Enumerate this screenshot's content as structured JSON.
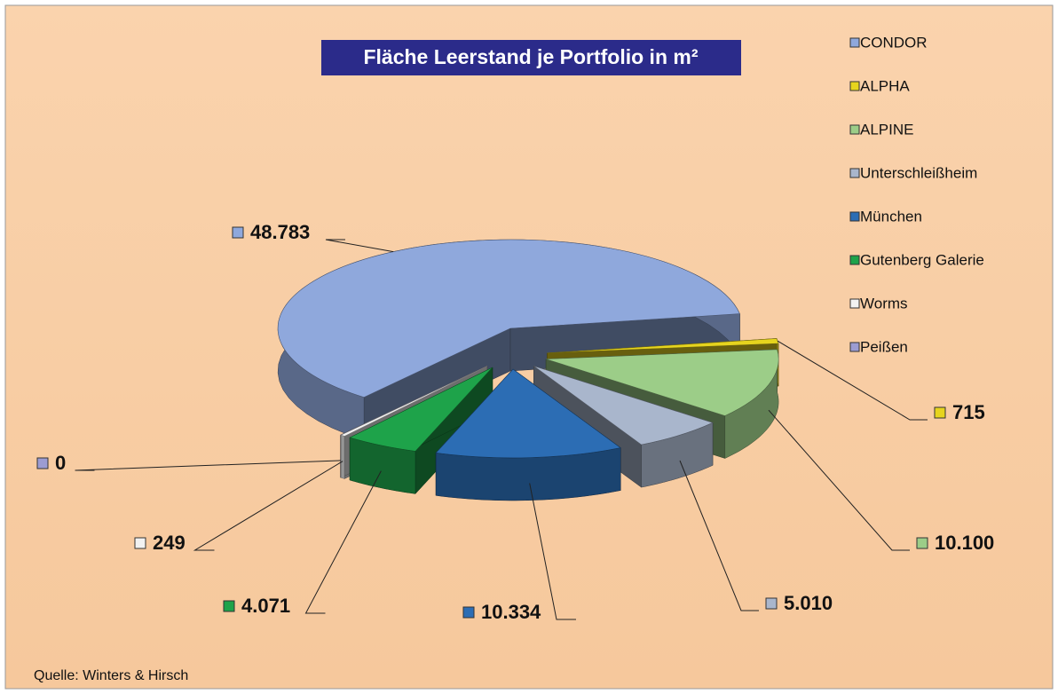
{
  "chart_data": {
    "type": "pie3d",
    "title": "Fläche Leerstand je Portfolio in m²",
    "source": "Quelle:  Winters & Hirsch",
    "categories": [
      "CONDOR",
      "ALPHA",
      "ALPINE",
      "Unterschleißheim",
      "München",
      "Gutenberg Galerie",
      "Worms",
      "Peißen"
    ],
    "values": [
      48783,
      715,
      10100,
      5010,
      10334,
      4071,
      249,
      0
    ],
    "value_labels": [
      "48.783",
      "715",
      "10.100",
      "5.010",
      "10.334",
      "4.071",
      "249",
      "0"
    ],
    "colors": [
      "#8fa8dc",
      "#e6d41e",
      "#9ccd88",
      "#a9b6cc",
      "#2c6db4",
      "#1ea34a",
      "#f2f2f2",
      "#9c9cd2"
    ]
  }
}
